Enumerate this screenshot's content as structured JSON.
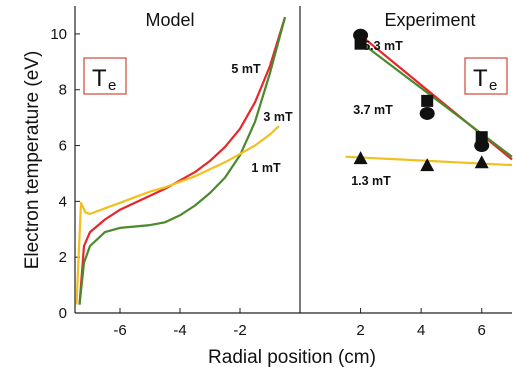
{
  "chart_data": [
    {
      "type": "line",
      "title": "Model",
      "xlabel": "Radial position (cm)",
      "ylabel": "Electron temperature (eV)",
      "xlim": [
        -7.5,
        0
      ],
      "ylim": [
        0,
        11
      ],
      "xticks": [
        "-6",
        "-4",
        "-2"
      ],
      "yticks": [
        "0",
        "2",
        "4",
        "6",
        "8",
        "10"
      ],
      "badge": {
        "main": "T",
        "sub": "e"
      },
      "series": [
        {
          "name": "5 mT",
          "color": "#e8262a",
          "x": [
            -7.35,
            -7.2,
            -7,
            -6.5,
            -6,
            -5.5,
            -5,
            -4.5,
            -4,
            -3.5,
            -3,
            -2.5,
            -2,
            -1.5,
            -1,
            -0.5
          ],
          "y": [
            0.3,
            2.4,
            2.9,
            3.35,
            3.7,
            3.95,
            4.2,
            4.45,
            4.75,
            5.05,
            5.45,
            5.95,
            6.6,
            7.55,
            8.85,
            10.6
          ]
        },
        {
          "name": "3 mT",
          "color": "#4a8a2c",
          "x": [
            -7.35,
            -7.2,
            -7,
            -6.5,
            -6,
            -5.5,
            -5,
            -4.5,
            -4,
            -3.5,
            -3,
            -2.5,
            -2,
            -1.5,
            -1,
            -0.5
          ],
          "y": [
            0.3,
            1.8,
            2.4,
            2.9,
            3.05,
            3.1,
            3.15,
            3.25,
            3.5,
            3.85,
            4.3,
            4.85,
            5.65,
            6.85,
            8.6,
            10.6
          ]
        },
        {
          "name": "1 mT",
          "color": "#f2c01e",
          "x": [
            -7.45,
            -7.3,
            -7.15,
            -7,
            -6.5,
            -6,
            -5.5,
            -5,
            -4.5,
            -4,
            -3.5,
            -3,
            -2.5,
            -2,
            -1.5,
            -1,
            -0.7
          ],
          "y": [
            0.3,
            3.95,
            3.6,
            3.55,
            3.75,
            3.95,
            4.15,
            4.35,
            4.5,
            4.7,
            4.9,
            5.15,
            5.4,
            5.7,
            6.0,
            6.4,
            6.7
          ]
        }
      ]
    },
    {
      "type": "scatter",
      "title": "Experiment",
      "xlim": [
        0,
        7
      ],
      "ylim": [
        0,
        11
      ],
      "xticks": [
        "2",
        "4",
        "6"
      ],
      "badge": {
        "main": "T",
        "sub": "e"
      },
      "series": [
        {
          "name": "5.3 mT",
          "color": "#e8262a",
          "points": [
            [
              2,
              9.85
            ],
            [
              4.2,
              7.55
            ],
            [
              6,
              6.25
            ]
          ],
          "fit": [
            [
              2,
              9.95
            ],
            [
              7,
              5.5
            ]
          ]
        },
        {
          "name": "3.7 mT",
          "color": "#4a8a2c",
          "points": [
            [
              2,
              9.7
            ],
            [
              4.2,
              7.2
            ],
            [
              6,
              6.0
            ]
          ],
          "fit": [
            [
              2,
              9.7
            ],
            [
              7,
              5.6
            ]
          ]
        },
        {
          "name": "1.3 mT",
          "color": "#f2c01e",
          "points": [
            [
              2,
              5.55
            ],
            [
              4.2,
              5.3
            ],
            [
              6,
              5.4
            ]
          ],
          "fit": [
            [
              1.5,
              5.6
            ],
            [
              7,
              5.3
            ]
          ]
        }
      ],
      "markers": [
        {
          "shape": "square",
          "x": 2,
          "y": 9.65
        },
        {
          "shape": "square",
          "x": 4.2,
          "y": 7.6
        },
        {
          "shape": "square",
          "x": 6,
          "y": 6.3
        },
        {
          "shape": "circle",
          "x": 2,
          "y": 9.95
        },
        {
          "shape": "circle",
          "x": 4.2,
          "y": 7.15
        },
        {
          "shape": "circle",
          "x": 6,
          "y": 6.0
        },
        {
          "shape": "triangle",
          "x": 2,
          "y": 5.55
        },
        {
          "shape": "triangle",
          "x": 4.2,
          "y": 5.3
        },
        {
          "shape": "triangle",
          "x": 6,
          "y": 5.4
        }
      ]
    }
  ]
}
